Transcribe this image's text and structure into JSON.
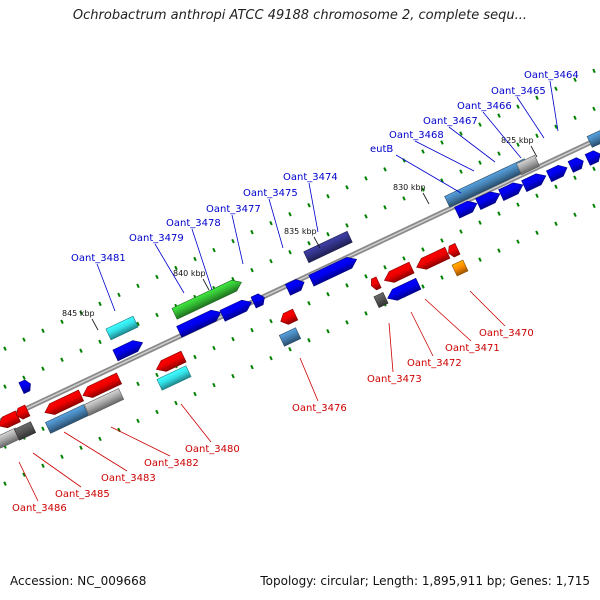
{
  "title": "Ochrobactrum anthropi ATCC 49188 chromosome 2, complete sequ...",
  "footer": {
    "accession": "Accession: NC_009668",
    "topology": "Topology: circular; Length: 1,895,911 bp; Genes: 1,715"
  },
  "colors": {
    "backbone": "#8a8a8a",
    "label_top": "#0000cc",
    "label_bottom": "#cc0000",
    "tick": "#008000",
    "blue": "#0000ee",
    "red": "#ee0000",
    "cyan": "#33e0e8",
    "green": "#33bb33",
    "steel": "#4682b4",
    "grey": "#aaaaaa",
    "darkgrey": "#555555",
    "navy": "#333388",
    "orange": "#ff8c00"
  },
  "kbp_marks": [
    "845 kbp",
    "840 kbp",
    "835 kbp",
    "830 kbp",
    "825 kbp"
  ],
  "gene_labels_top": [
    "Oant_3481",
    "Oant_3479",
    "Oant_3478",
    "Oant_3477",
    "Oant_3475",
    "Oant_3474",
    "eutB",
    "Oant_3468",
    "Oant_3467",
    "Oant_3466",
    "Oant_3465",
    "Oant_3464"
  ],
  "gene_labels_bottom": [
    "Oant_3486",
    "Oant_3485",
    "Oant_3483",
    "Oant_3482",
    "Oant_3480",
    "Oant_3476",
    "Oant_3473",
    "Oant_3472",
    "Oant_3471",
    "Oant_3470"
  ]
}
